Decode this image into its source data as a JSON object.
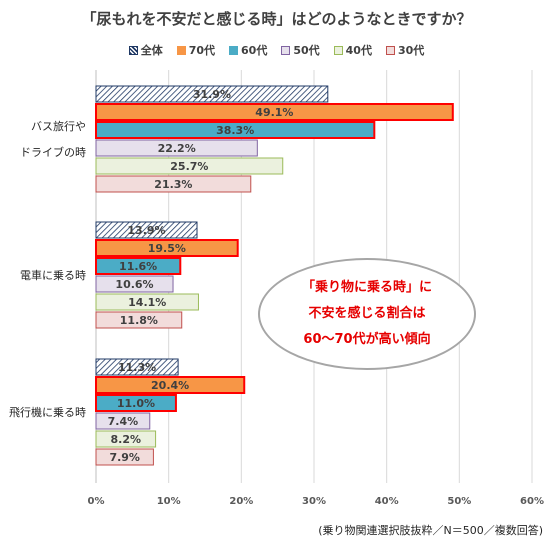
{
  "title": "「尿もれを不安だと感じる時」はどのようなときですか？",
  "legend": [
    {
      "label": "全体",
      "fill": "hatch",
      "stroke": "#1f3864"
    },
    {
      "label": "70代",
      "fill": "#f79646",
      "stroke": "#f79646"
    },
    {
      "label": "60代",
      "fill": "#4bacc6",
      "stroke": "#4bacc6"
    },
    {
      "label": "50代",
      "fill": "#e6e0ec",
      "stroke": "#8064a2"
    },
    {
      "label": "40代",
      "fill": "#ebf1de",
      "stroke": "#9bbb59"
    },
    {
      "label": "30代",
      "fill": "#f2dcdb",
      "stroke": "#c0504d"
    }
  ],
  "callout": {
    "line1": "「乗り物に乗る時」に",
    "line2": "不安を感じる割合は",
    "line3": "60〜70代が高い傾向"
  },
  "source": "(乗り物関連選択肢抜粋／N＝500／複数回答)",
  "chart_data": {
    "type": "bar",
    "orientation": "horizontal",
    "categories": [
      [
        "バス旅行や",
        "ドライブの時"
      ],
      [
        "電車に乗る時"
      ],
      [
        "飛行機に乗る時"
      ]
    ],
    "series": [
      {
        "name": "全体",
        "values": [
          31.9,
          13.9,
          11.3
        ],
        "labels": [
          "31.9%",
          "13.9%",
          "11.3%"
        ]
      },
      {
        "name": "70代",
        "values": [
          49.1,
          19.5,
          20.4
        ],
        "labels": [
          "49.1%",
          "19.5%",
          "20.4%"
        ]
      },
      {
        "name": "60代",
        "values": [
          38.3,
          11.6,
          11.0
        ],
        "labels": [
          "38.3%",
          "11.6%",
          "11.0%"
        ]
      },
      {
        "name": "50代",
        "values": [
          22.2,
          10.6,
          7.4
        ],
        "labels": [
          "22.2%",
          "10.6%",
          "7.4%"
        ]
      },
      {
        "name": "40代",
        "values": [
          25.7,
          14.1,
          8.2
        ],
        "labels": [
          "25.7%",
          "14.1%",
          "8.2%"
        ]
      },
      {
        "name": "30代",
        "values": [
          21.3,
          11.8,
          7.9
        ],
        "labels": [
          "21.3%",
          "11.8%",
          "7.9%"
        ]
      }
    ],
    "highlighted_series": [
      "70代",
      "60代"
    ],
    "highlight_color": "#ff0000",
    "xlim": [
      0,
      60
    ],
    "x_ticks": [
      "0%",
      "10%",
      "20%",
      "30%",
      "40%",
      "50%",
      "60%"
    ],
    "grid": true,
    "legend_position": "top"
  }
}
